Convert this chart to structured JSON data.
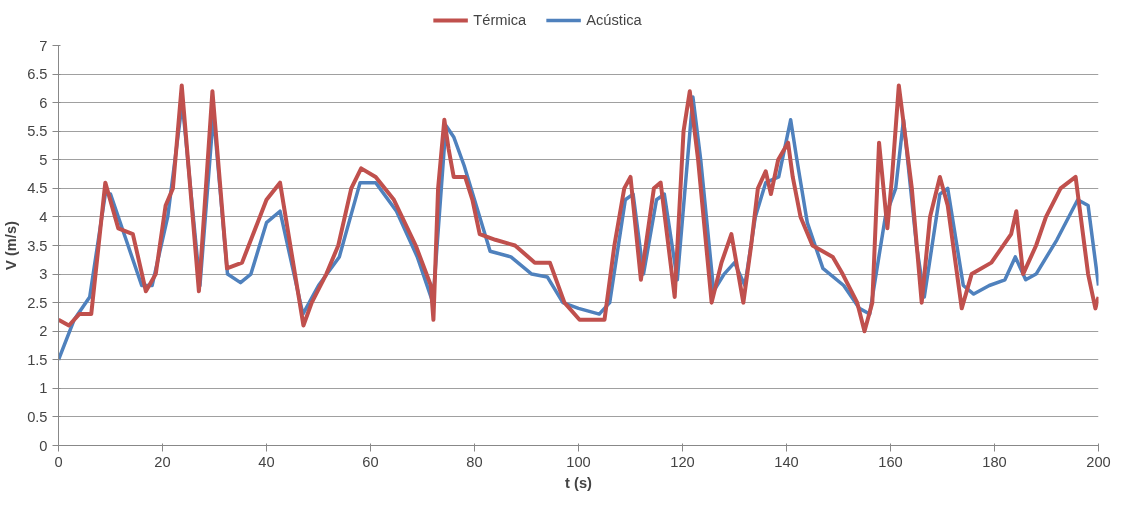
{
  "chart_data": {
    "type": "line",
    "xlabel": "t (s)",
    "ylabel": "V (m/s)",
    "xlim": [
      0,
      200
    ],
    "xticks": [
      0,
      20,
      40,
      60,
      80,
      100,
      120,
      140,
      160,
      180,
      200
    ],
    "ylim": [
      0,
      7
    ],
    "yticks": [
      0,
      0.5,
      1,
      1.5,
      2,
      2.5,
      3,
      3.5,
      4,
      4.5,
      5,
      5.5,
      6,
      6.5,
      7
    ],
    "grid": "y",
    "legend": "top",
    "marker": "none",
    "line_style": "solid",
    "series": [
      {
        "name": "Térmica",
        "color": "#c0504d",
        "x": [
          0,
          2,
          4,
          6.3,
          9,
          11.5,
          14.3,
          16.8,
          18.7,
          20.6,
          22,
          23.7,
          27,
          29.6,
          32.4,
          35.3,
          40,
          42.6,
          47.1,
          48.7,
          51.5,
          53.8,
          56.3,
          58.2,
          61,
          64.5,
          68.7,
          71.6,
          72.1,
          73,
          74.2,
          75,
          76,
          78.2,
          79.6,
          81,
          84,
          87.8,
          91.6,
          94.5,
          97.3,
          100.2,
          105,
          106.9,
          108.8,
          110,
          112,
          114.5,
          115.8,
          118.5,
          120.2,
          121.4,
          123,
          125.6,
          127.5,
          129.4,
          131.7,
          133.2,
          134.5,
          136,
          137,
          138.4,
          140.3,
          141.2,
          142.7,
          145,
          148.9,
          150.8,
          153.6,
          155,
          156.5,
          157.8,
          159.4,
          160.3,
          161.6,
          164.1,
          166,
          167.6,
          169.5,
          171,
          173.7,
          175.6,
          179.4,
          183.2,
          184.2,
          185.5,
          188,
          189.9,
          192.7,
          195.6,
          198,
          199.4,
          200
        ],
        "values": [
          2.2,
          2.1,
          2.3,
          2.3,
          4.6,
          3.8,
          3.7,
          2.7,
          3.0,
          4.2,
          4.5,
          6.3,
          2.7,
          6.2,
          3.1,
          3.2,
          4.3,
          4.6,
          2.1,
          2.5,
          3.0,
          3.5,
          4.5,
          4.85,
          4.7,
          4.3,
          3.5,
          2.8,
          2.2,
          4.5,
          5.7,
          5.2,
          4.7,
          4.7,
          4.3,
          3.7,
          3.6,
          3.5,
          3.2,
          3.2,
          2.5,
          2.2,
          2.2,
          3.5,
          4.5,
          4.7,
          2.9,
          4.5,
          4.6,
          2.6,
          5.5,
          6.2,
          5.0,
          2.5,
          3.2,
          3.7,
          2.5,
          3.5,
          4.5,
          4.8,
          4.4,
          5.0,
          5.3,
          4.7,
          4.0,
          3.5,
          3.3,
          3.0,
          2.5,
          2.0,
          2.5,
          5.3,
          3.8,
          4.7,
          6.3,
          4.5,
          2.5,
          4.0,
          4.7,
          4.2,
          2.4,
          3.0,
          3.2,
          3.7,
          4.1,
          3.0,
          3.5,
          4.0,
          4.5,
          4.7,
          3.0,
          2.4,
          2.6
        ]
      },
      {
        "name": "Acústica",
        "color": "#4f81bd",
        "x": [
          0,
          3,
          6,
          9,
          10,
          13,
          16,
          18,
          21,
          23.8,
          27.2,
          29.8,
          32.5,
          35,
          37,
          40,
          42.6,
          47,
          50,
          54,
          58,
          61,
          65,
          69,
          72,
          74.5,
          76,
          78,
          80,
          83,
          87,
          91,
          94,
          97,
          100,
          104,
          106,
          109,
          110.5,
          112.5,
          115,
          116.5,
          119,
          122,
          123.5,
          126,
          128,
          130,
          132,
          134,
          136,
          138.5,
          140.8,
          142,
          144,
          147,
          151,
          154,
          156,
          159,
          161,
          162.5,
          165,
          166.5,
          169.5,
          171,
          174,
          176,
          179,
          182,
          184,
          186,
          188,
          192,
          196,
          198,
          200
        ],
        "values": [
          1.5,
          2.2,
          2.6,
          4.4,
          4.4,
          3.6,
          2.8,
          2.8,
          4.0,
          6.0,
          2.8,
          5.8,
          3.0,
          2.85,
          3.0,
          3.9,
          4.1,
          2.3,
          2.8,
          3.3,
          4.6,
          4.6,
          4.1,
          3.3,
          2.5,
          5.6,
          5.4,
          4.9,
          4.3,
          3.4,
          3.3,
          3.0,
          2.95,
          2.5,
          2.4,
          2.3,
          2.5,
          4.3,
          4.4,
          3.0,
          4.3,
          4.4,
          2.9,
          6.1,
          5.0,
          2.7,
          3.0,
          3.2,
          2.8,
          4.0,
          4.6,
          4.7,
          5.7,
          5.0,
          3.9,
          3.1,
          2.8,
          2.4,
          2.3,
          4.0,
          4.5,
          5.7,
          3.5,
          2.6,
          4.4,
          4.5,
          2.8,
          2.65,
          2.8,
          2.9,
          3.3,
          2.9,
          3.0,
          3.6,
          4.3,
          4.2,
          2.8
        ]
      }
    ]
  }
}
